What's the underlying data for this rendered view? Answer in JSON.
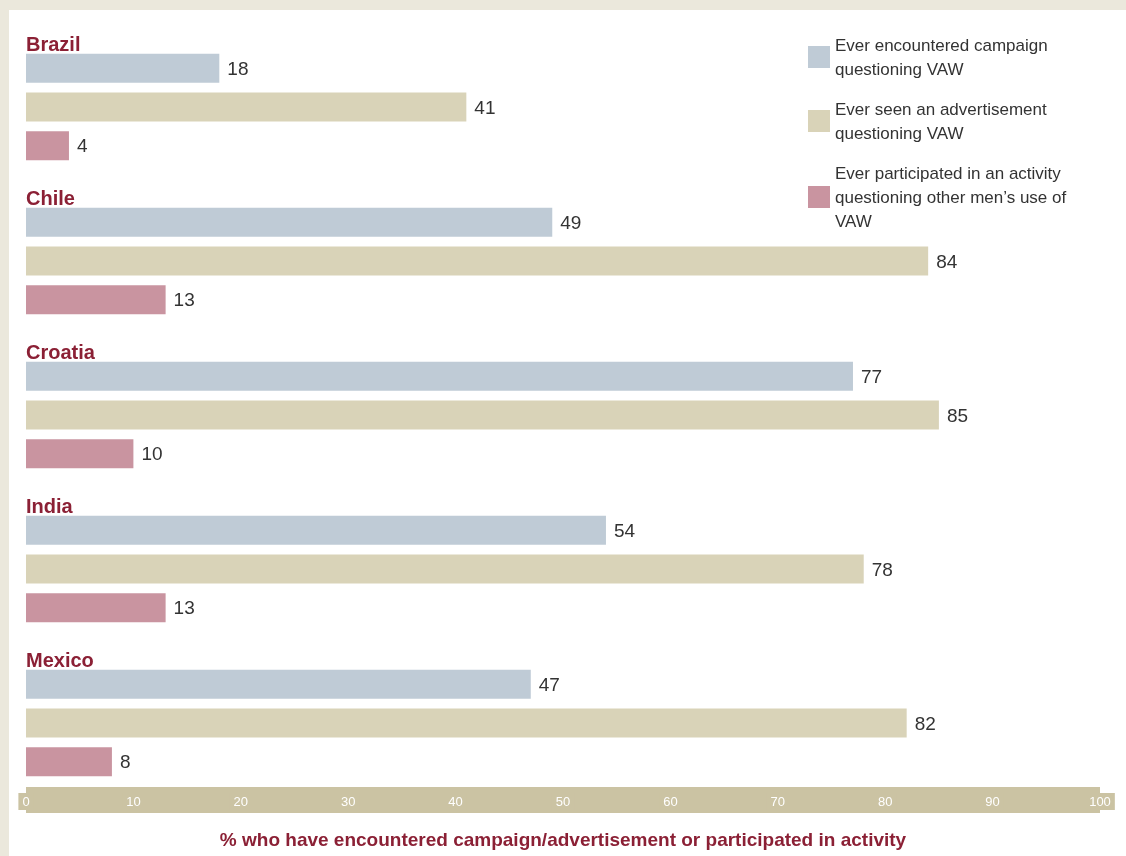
{
  "chart_data": {
    "type": "bar",
    "orientation": "horizontal",
    "xlabel": "% who have encountered campaign/advertisement or participated in activity",
    "categories": [
      "Brazil",
      "Chile",
      "Croatia",
      "India",
      "Mexico"
    ],
    "series": [
      {
        "name": "Ever encountered campaign questioning VAW",
        "color": "#bfcbd6",
        "values": [
          18,
          49,
          77,
          54,
          47
        ]
      },
      {
        "name": "Ever seen an advertisement questioning VAW",
        "color": "#d9d3b8",
        "values": [
          41,
          84,
          85,
          78,
          82
        ]
      },
      {
        "name": "Ever participated in an activity questioning other men’s use of VAW",
        "color": "#c994a0",
        "values": [
          4,
          13,
          10,
          13,
          8
        ]
      }
    ],
    "xlim": [
      0,
      100
    ],
    "xticks": [
      0,
      10,
      20,
      30,
      40,
      50,
      60,
      70,
      80,
      90,
      100
    ],
    "data_labels": true,
    "legend": "top right",
    "grid": false
  }
}
